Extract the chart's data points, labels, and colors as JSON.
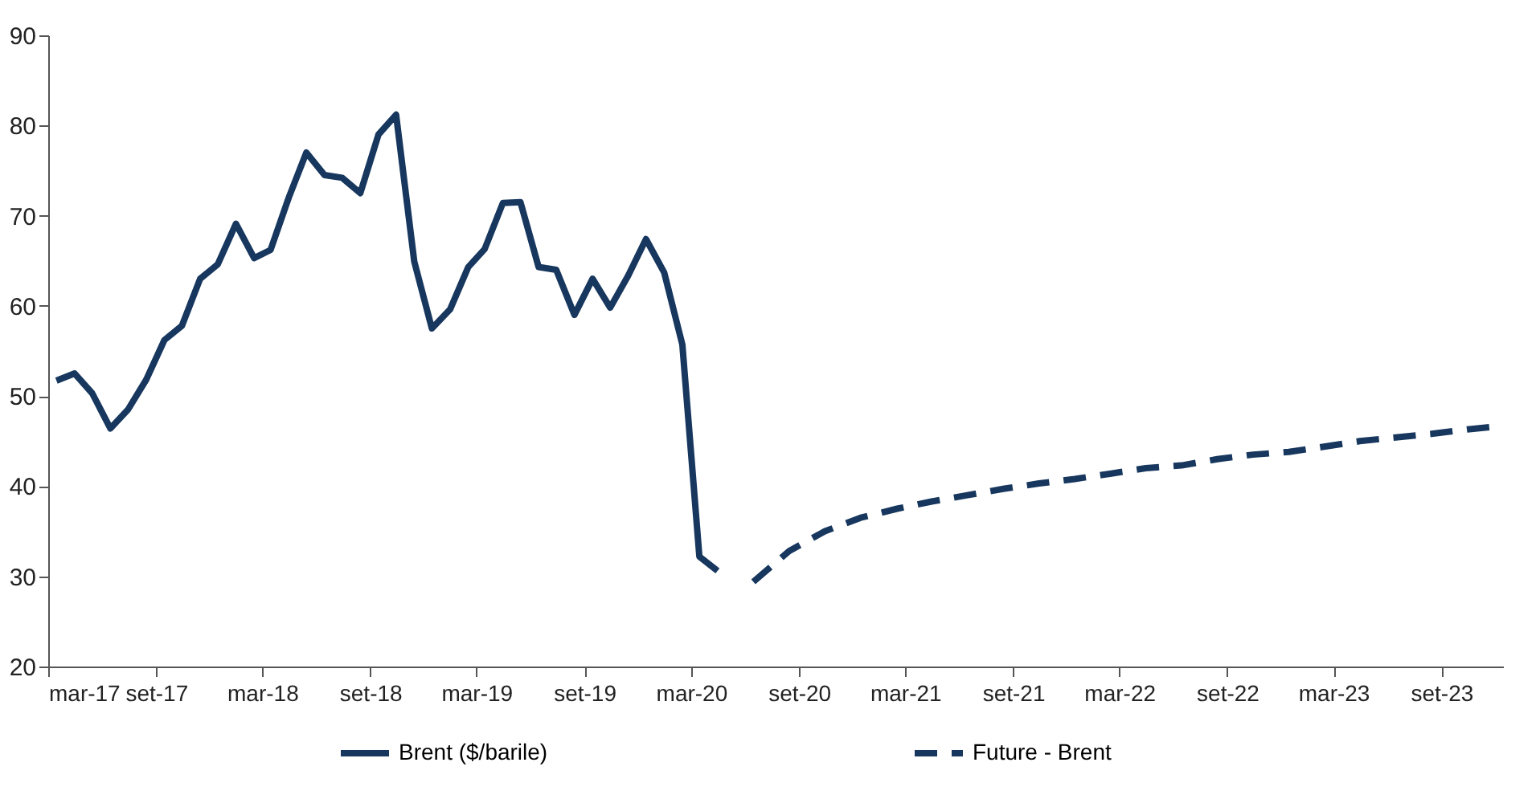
{
  "chart_data": {
    "type": "line",
    "x": [
      "2017-03-15",
      "2017-04-15",
      "2017-05-15",
      "2017-06-15",
      "2017-07-15",
      "2017-08-15",
      "2017-09-15",
      "2017-10-15",
      "2017-11-15",
      "2017-12-15",
      "2018-01-15",
      "2018-02-15",
      "2018-03-15",
      "2018-04-15",
      "2018-05-15",
      "2018-06-15",
      "2018-07-15",
      "2018-08-15",
      "2018-09-15",
      "2018-10-15",
      "2018-11-15",
      "2018-12-15",
      "2019-01-15",
      "2019-02-15",
      "2019-03-15",
      "2019-04-15",
      "2019-05-15",
      "2019-06-15",
      "2019-07-15",
      "2019-08-15",
      "2019-09-15",
      "2019-10-15",
      "2019-11-15",
      "2019-12-15",
      "2020-01-15",
      "2020-02-15",
      "2020-03-15",
      "2020-04-15"
    ],
    "series": [
      {
        "name": "Brent ($/barile)",
        "color": "#17375e",
        "line_style": "solid",
        "values": [
          51.7,
          52.5,
          50.3,
          46.4,
          48.5,
          51.8,
          56.2,
          57.8,
          63.0,
          64.6,
          69.1,
          65.3,
          66.2,
          72.0,
          77.0,
          74.5,
          74.2,
          72.5,
          79.0,
          81.2,
          64.9,
          57.5,
          59.6,
          64.3,
          66.3,
          71.4,
          71.5,
          64.3,
          64.0,
          59.0,
          63.0,
          59.8,
          63.4,
          67.4,
          63.7,
          55.7,
          32.2,
          30.6
        ]
      },
      {
        "name": "Future - Brent",
        "color": "#17375e",
        "line_style": "dashed",
        "x": [
          "2020-06-15",
          "2020-08-15",
          "2020-10-15",
          "2020-12-15",
          "2021-02-15",
          "2021-04-15",
          "2021-06-15",
          "2021-08-15",
          "2021-10-15",
          "2021-12-15",
          "2022-02-15",
          "2022-04-15",
          "2022-06-15",
          "2022-08-15",
          "2022-10-15",
          "2022-12-15",
          "2023-02-15",
          "2023-04-15",
          "2023-06-15",
          "2023-08-15",
          "2023-10-15",
          "2023-12-15"
        ],
        "values": [
          29.4,
          32.8,
          35.0,
          36.5,
          37.5,
          38.3,
          39.0,
          39.7,
          40.3,
          40.8,
          41.4,
          42.0,
          42.3,
          43.0,
          43.5,
          43.8,
          44.4,
          45.0,
          45.4,
          45.8,
          46.3,
          46.7
        ]
      }
    ],
    "xlim": [
      "2017-03-01",
      "2023-12-15"
    ],
    "xticks": [
      {
        "value": "2017-03-01",
        "label": "mar-17"
      },
      {
        "value": "2017-09-01",
        "label": "set-17"
      },
      {
        "value": "2018-03-01",
        "label": "mar-18"
      },
      {
        "value": "2018-09-01",
        "label": "set-18"
      },
      {
        "value": "2019-03-01",
        "label": "mar-19"
      },
      {
        "value": "2019-09-01",
        "label": "set-19"
      },
      {
        "value": "2020-03-01",
        "label": "mar-20"
      },
      {
        "value": "2020-09-01",
        "label": "set-20"
      },
      {
        "value": "2021-03-01",
        "label": "mar-21"
      },
      {
        "value": "2021-09-01",
        "label": "set-21"
      },
      {
        "value": "2022-03-01",
        "label": "mar-22"
      },
      {
        "value": "2022-09-01",
        "label": "set-22"
      },
      {
        "value": "2023-03-01",
        "label": "mar-23"
      },
      {
        "value": "2023-09-01",
        "label": "set-23"
      }
    ],
    "ylim": [
      20,
      90
    ],
    "yticks": [
      20,
      30,
      40,
      50,
      60,
      70,
      80,
      90
    ],
    "grid": false,
    "legend": "bottom",
    "marker": "none"
  }
}
